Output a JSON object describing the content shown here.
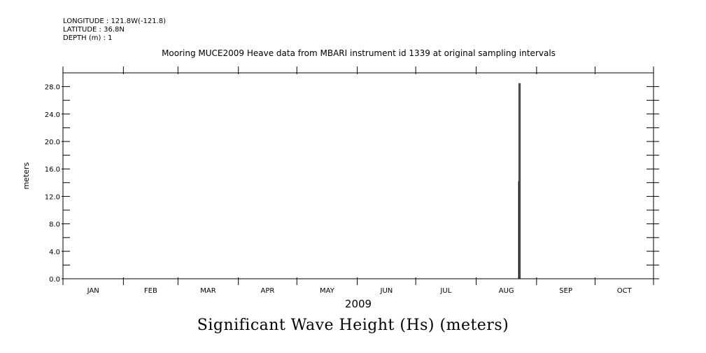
{
  "header": {
    "longitude": "LONGITUDE : 121.8W(-121.8)",
    "latitude": "LATITUDE : 36.8N",
    "depth": "DEPTH (m) : 1"
  },
  "plot_title": "Mooring MUCE2009 Heave data from MBARI instrument id 1339 at original sampling intervals",
  "bottom_title": "Significant Wave Height (Hs) (meters)",
  "chart_data": {
    "type": "line",
    "title": "Mooring MUCE2009 Heave data from MBARI instrument id 1339 at original sampling intervals",
    "xlabel": "2009",
    "ylabel": "meters",
    "ylim": [
      0,
      30
    ],
    "yticks": [
      0,
      4,
      8,
      12,
      16,
      20,
      24,
      28
    ],
    "ytick_labels": [
      "0.0",
      "4.0",
      "8.0",
      "12.0",
      "16.0",
      "20.0",
      "24.0",
      "28.0"
    ],
    "x_months": [
      "JAN",
      "FEB",
      "MAR",
      "APR",
      "MAY",
      "JUN",
      "JUL",
      "AUG",
      "SEP",
      "OCT"
    ],
    "xlim": [
      "2009-01-01",
      "2009-10-31"
    ],
    "series": [
      {
        "x": [
          "2009-08-23",
          "2009-08-23",
          "2009-08-23",
          "2009-08-23",
          "2009-08-23"
        ],
        "values": [
          0.0,
          14.2,
          28.5,
          0.0,
          0.0
        ]
      }
    ],
    "grid": false
  }
}
